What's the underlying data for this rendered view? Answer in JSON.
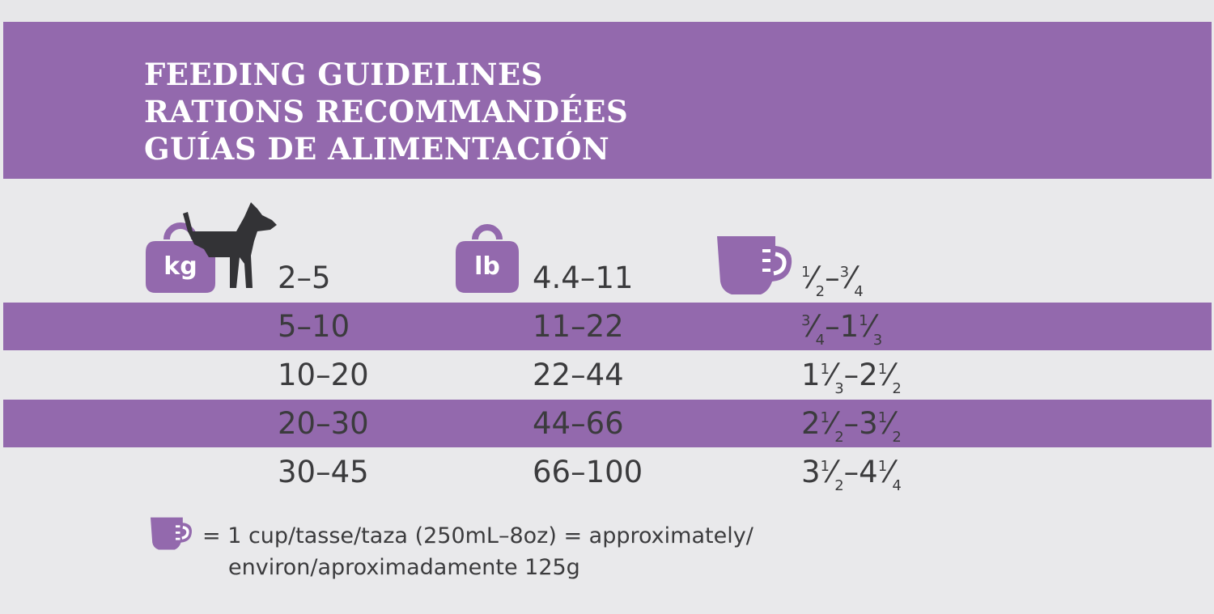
{
  "colors": {
    "accent": "#9369ad",
    "dog": "#333336",
    "text": "#3b3b3d"
  },
  "title_lines": [
    "FEEDING GUIDELINES",
    "RATIONS RECOMMANDÉES",
    "GUÍAS DE ALIMENTACIÓN"
  ],
  "icons": {
    "kg_weight": {
      "name": "kg-weight-icon",
      "label": "kg"
    },
    "dog": {
      "name": "dog-icon"
    },
    "lb_weight": {
      "name": "lb-weight-icon",
      "label": "lb"
    },
    "cup": {
      "name": "measuring-cup-icon"
    }
  },
  "rows": [
    {
      "kg": "2–5",
      "lb": "4.4–11",
      "cups": {
        "a_whole": "",
        "a_num": "1",
        "a_den": "2",
        "b_whole": "",
        "b_num": "3",
        "b_den": "4"
      },
      "shaded": false
    },
    {
      "kg": "5–10",
      "lb": "11–22",
      "cups": {
        "a_whole": "",
        "a_num": "3",
        "a_den": "4",
        "b_whole": "1",
        "b_num": "1",
        "b_den": "3"
      },
      "shaded": true
    },
    {
      "kg": "10–20",
      "lb": "22–44",
      "cups": {
        "a_whole": "1",
        "a_num": "1",
        "a_den": "3",
        "b_whole": "2",
        "b_num": "1",
        "b_den": "2"
      },
      "shaded": false
    },
    {
      "kg": "20–30",
      "lb": "44–66",
      "cups": {
        "a_whole": "2",
        "a_num": "1",
        "a_den": "2",
        "b_whole": "3",
        "b_num": "1",
        "b_den": "2"
      },
      "shaded": true
    },
    {
      "kg": "30–45",
      "lb": "66–100",
      "cups": {
        "a_whole": "3",
        "a_num": "1",
        "a_den": "2",
        "b_whole": "4",
        "b_num": "1",
        "b_den": "4"
      },
      "shaded": false
    }
  ],
  "footnote": {
    "line1": "= 1 cup/tasse/taza (250mL–8oz) = approximately/",
    "line2": "environ/aproximadamente 125g"
  }
}
